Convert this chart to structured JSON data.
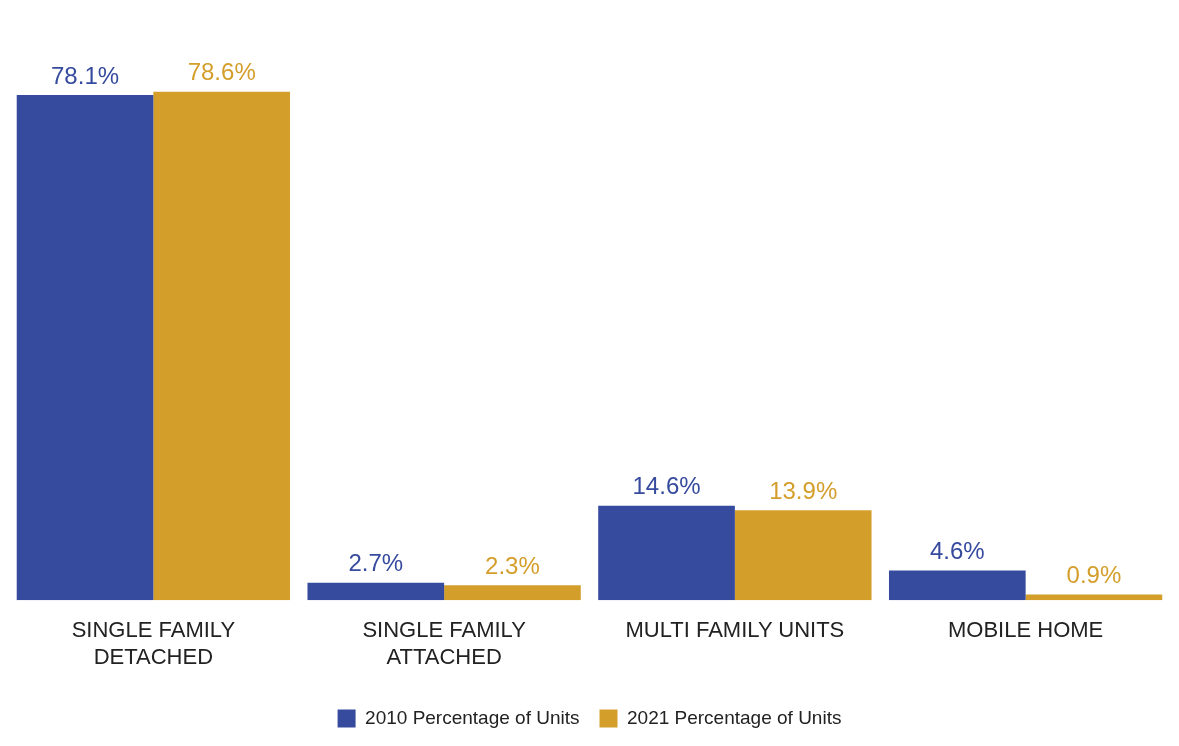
{
  "chart_data": {
    "type": "bar",
    "categories": [
      "SINGLE FAMILY DETACHED",
      "SINGLE FAMILY ATTACHED",
      "MULTI FAMILY UNITS",
      "MOBILE HOME"
    ],
    "series": [
      {
        "name": "2010 Percentage of Units",
        "color": "#364a9e",
        "values": [
          78.1,
          2.7,
          14.6,
          4.6
        ],
        "value_labels": [
          "78.1%",
          "2.7%",
          "14.6%",
          "4.6%"
        ]
      },
      {
        "name": "2021 Percentage of Units",
        "color": "#d49e2a",
        "values": [
          78.6,
          2.3,
          13.9,
          0.9
        ],
        "value_labels": [
          "78.6%",
          "2.3%",
          "13.9%",
          "0.9%"
        ]
      }
    ],
    "legend": "bottom",
    "grid": false
  }
}
